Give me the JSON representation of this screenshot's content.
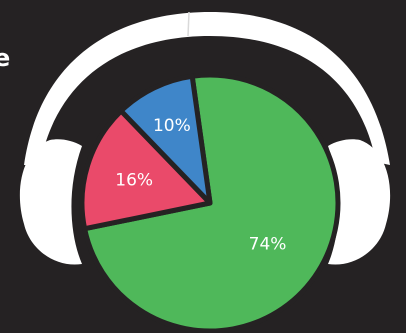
{
  "chart_data": {
    "type": "pie",
    "slices": [
      {
        "label": "74%",
        "value": 74,
        "color": "#4fb85a"
      },
      {
        "label": "16%",
        "value": 16,
        "color": "#ea4a6a"
      },
      {
        "label": "10%",
        "value": 10,
        "color": "#3f86c9"
      }
    ],
    "start_angle_deg": 352,
    "direction": "clockwise",
    "decoration": "headphones-icon"
  },
  "truncated_text": "e",
  "colors": {
    "background": "#252223",
    "headphones": "#ffffff",
    "outline": "#252223"
  }
}
